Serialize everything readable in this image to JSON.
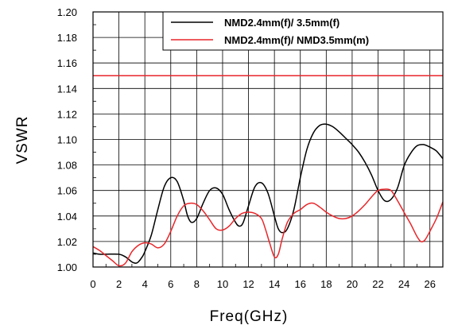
{
  "chart_data": {
    "type": "line",
    "title": "",
    "xlabel": "Freq(GHz)",
    "ylabel": "VSWR",
    "xlim": [
      0,
      27
    ],
    "ylim": [
      1.0,
      1.2
    ],
    "x_ticks": [
      0,
      2,
      4,
      6,
      8,
      10,
      12,
      14,
      16,
      18,
      20,
      22,
      24,
      26
    ],
    "y_ticks": [
      1.0,
      1.02,
      1.04,
      1.06,
      1.08,
      1.1,
      1.12,
      1.14,
      1.16,
      1.18,
      1.2
    ],
    "x_tick_labels": [
      "0",
      "2",
      "4",
      "6",
      "8",
      "10",
      "12",
      "14",
      "16",
      "18",
      "20",
      "22",
      "24",
      "26"
    ],
    "y_tick_labels": [
      "1.00",
      "1.02",
      "1.04",
      "1.06",
      "1.08",
      "1.10",
      "1.12",
      "1.14",
      "1.16",
      "1.18",
      "1.20"
    ],
    "grid": true,
    "legend_position": "top-right",
    "reference_line": {
      "y": 1.15,
      "color": "#e8262a"
    },
    "series": [
      {
        "name": "NMD2.4mm(f)/ 3.5mm(f)",
        "color": "#000000",
        "x": [
          0,
          0.5,
          1,
          2,
          2.5,
          3,
          3.3,
          3.5,
          3.8,
          4,
          4.5,
          5,
          5.5,
          6,
          6.5,
          7,
          7.3,
          7.6,
          8,
          8.5,
          9,
          9.5,
          10,
          10.5,
          11,
          11.3,
          11.6,
          12,
          12.5,
          13,
          13.5,
          14,
          14.3,
          14.6,
          15,
          15.5,
          16,
          16.5,
          17,
          17.5,
          18,
          18.5,
          19,
          19.5,
          20,
          20.5,
          21,
          21.5,
          22,
          22.5,
          23,
          23.5,
          24,
          24.5,
          25,
          25.5,
          26,
          26.5,
          27
        ],
        "y": [
          1.011,
          1.01,
          1.01,
          1.01,
          1.008,
          1.004,
          1.003,
          1.004,
          1.008,
          1.012,
          1.025,
          1.045,
          1.063,
          1.07,
          1.067,
          1.052,
          1.04,
          1.035,
          1.038,
          1.05,
          1.06,
          1.062,
          1.057,
          1.045,
          1.035,
          1.032,
          1.035,
          1.048,
          1.063,
          1.066,
          1.058,
          1.04,
          1.03,
          1.027,
          1.03,
          1.045,
          1.07,
          1.092,
          1.105,
          1.111,
          1.112,
          1.11,
          1.106,
          1.101,
          1.096,
          1.09,
          1.082,
          1.072,
          1.06,
          1.052,
          1.053,
          1.062,
          1.079,
          1.089,
          1.095,
          1.096,
          1.094,
          1.091,
          1.085
        ]
      },
      {
        "name": "NMD2.4mm(f)/ NMD3.5mm(m)",
        "color": "#e8262a",
        "x": [
          0,
          0.5,
          1,
          1.5,
          2,
          2.5,
          3,
          3.5,
          4,
          4.5,
          5,
          5.5,
          6,
          6.5,
          7,
          7.5,
          8,
          8.5,
          9,
          9.5,
          10,
          10.5,
          11,
          11.5,
          12,
          12.5,
          13,
          13.3,
          13.6,
          14,
          14.3,
          14.6,
          15,
          15.5,
          16,
          16.5,
          17,
          17.5,
          18,
          18.5,
          19,
          19.5,
          20,
          20.5,
          21,
          21.5,
          22,
          22.5,
          23,
          23.5,
          24,
          24.5,
          25,
          25.3,
          25.6,
          26,
          26.5,
          27
        ],
        "y": [
          1.016,
          1.013,
          1.009,
          1.005,
          1.001,
          1.003,
          1.012,
          1.017,
          1.019,
          1.018,
          1.015,
          1.018,
          1.028,
          1.04,
          1.048,
          1.05,
          1.049,
          1.044,
          1.037,
          1.03,
          1.029,
          1.032,
          1.038,
          1.042,
          1.043,
          1.042,
          1.038,
          1.03,
          1.02,
          1.008,
          1.01,
          1.022,
          1.035,
          1.042,
          1.045,
          1.049,
          1.05,
          1.047,
          1.043,
          1.04,
          1.038,
          1.038,
          1.04,
          1.044,
          1.049,
          1.055,
          1.06,
          1.061,
          1.06,
          1.052,
          1.043,
          1.034,
          1.024,
          1.02,
          1.021,
          1.028,
          1.038,
          1.051
        ]
      }
    ]
  }
}
